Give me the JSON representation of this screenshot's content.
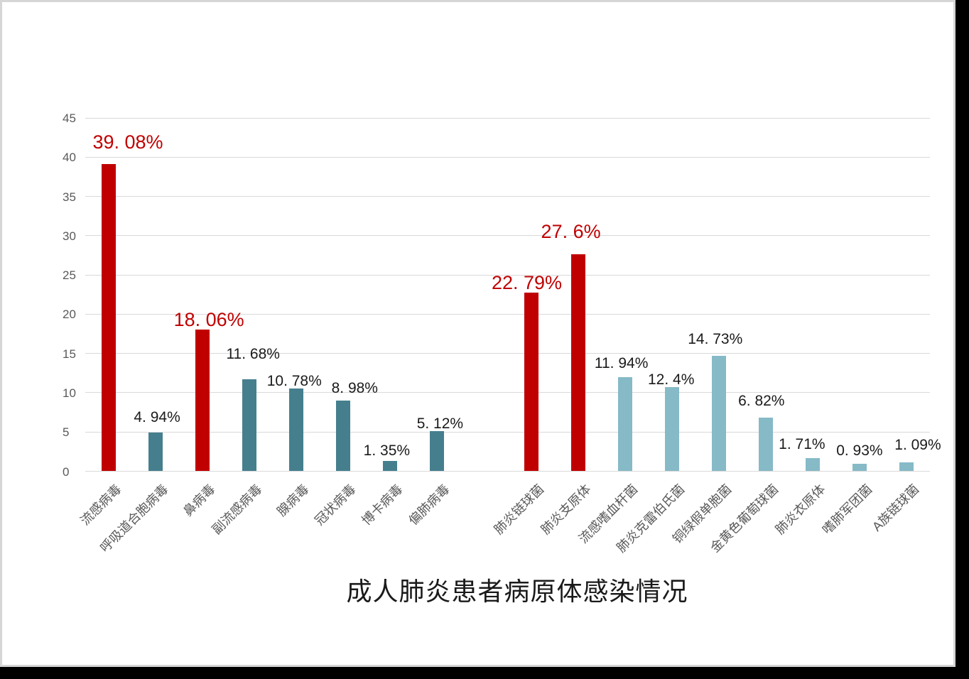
{
  "chart_data": {
    "type": "bar",
    "title": "成人肺炎患者病原体感染情况",
    "xlabel": "",
    "ylabel": "",
    "ylim": [
      0,
      45
    ],
    "yticks": [
      0,
      5,
      10,
      15,
      20,
      25,
      30,
      35,
      40,
      45
    ],
    "grid": true,
    "legend": "none",
    "slots_total": 18,
    "gap_slot": 8,
    "palette": {
      "highlight_red": "#c00000",
      "virus_teal": "#457f8e",
      "bacteria_blue": "#86bac7",
      "gridline": "#d9d9d9",
      "axis_text": "#595959",
      "value_text": "#1a1a1a"
    },
    "bars": [
      {
        "slot": 0,
        "category": "流感病毒",
        "value": 39.08,
        "label": "39. 08%",
        "color": "#c00000",
        "emphasis": true
      },
      {
        "slot": 1,
        "category": "呼吸道合胞病毒",
        "value": 4.94,
        "label": "4. 94%",
        "color": "#457f8e",
        "emphasis": false
      },
      {
        "slot": 2,
        "category": "鼻病毒",
        "value": 18.06,
        "label": "18. 06%",
        "color": "#c00000",
        "emphasis": true
      },
      {
        "slot": 3,
        "category": "副流感病毒",
        "value": 11.68,
        "label": "11. 68%",
        "color": "#457f8e",
        "emphasis": false
      },
      {
        "slot": 4,
        "category": "腺病毒",
        "value": 10.78,
        "label": "10. 78%",
        "color": "#457f8e",
        "emphasis": false
      },
      {
        "slot": 5,
        "category": "冠状病毒",
        "value": 8.98,
        "label": "8. 98%",
        "color": "#457f8e",
        "emphasis": false
      },
      {
        "slot": 6,
        "category": "博卡病毒",
        "value": 1.35,
        "label": "1. 35%",
        "color": "#457f8e",
        "emphasis": false
      },
      {
        "slot": 7,
        "category": "偏肺病毒",
        "value": 5.12,
        "label": "5. 12%",
        "color": "#457f8e",
        "emphasis": false
      },
      {
        "slot": 9,
        "category": "肺炎链球菌",
        "value": 22.79,
        "label": "22. 79%",
        "color": "#c00000",
        "emphasis": true
      },
      {
        "slot": 10,
        "category": "肺炎支原体",
        "value": 27.6,
        "label": "27. 6%",
        "color": "#c00000",
        "emphasis": true
      },
      {
        "slot": 11,
        "category": "流感嗜血杆菌",
        "value": 11.94,
        "label": "11. 94%",
        "color": "#86bac7",
        "emphasis": false
      },
      {
        "slot": 12,
        "category": "肺炎克雷伯氏菌",
        "value": 12.4,
        "label": "12. 4%",
        "color": "#86bac7",
        "emphasis": false
      },
      {
        "slot": 13,
        "category": "铜绿假单胞菌",
        "value": 14.73,
        "label": "14. 73%",
        "color": "#86bac7",
        "emphasis": false
      },
      {
        "slot": 14,
        "category": "金黄色葡萄球菌",
        "value": 6.82,
        "label": "6. 82%",
        "color": "#86bac7",
        "emphasis": false
      },
      {
        "slot": 15,
        "category": "肺炎衣原体",
        "value": 1.71,
        "label": "1. 71%",
        "color": "#86bac7",
        "emphasis": false
      },
      {
        "slot": 16,
        "category": "嗜肺军团菌",
        "value": 0.93,
        "label": "0. 93%",
        "color": "#86bac7",
        "emphasis": false
      },
      {
        "slot": 17,
        "category": "A族链球菌",
        "value": 1.09,
        "label": "1. 09%",
        "color": "#86bac7",
        "emphasis": false
      }
    ]
  }
}
